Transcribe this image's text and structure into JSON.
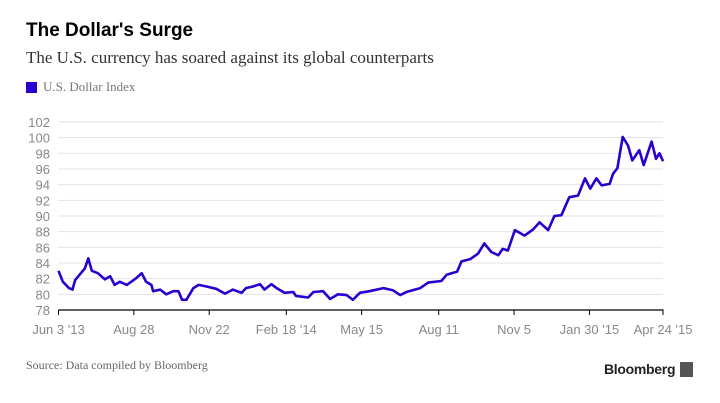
{
  "title": "The Dollar's Surge",
  "subtitle": "The U.S. currency has soared against its global counterparts",
  "source": "Source: Data compiled by Bloomberg",
  "logo": "Bloomberg",
  "colors": {
    "series": "#2a00d0",
    "grid": "#e3e3ea",
    "axis": "#000000",
    "tick_text": "#888888"
  },
  "chart_data": {
    "type": "line",
    "title": "The Dollar's Surge",
    "xlabel": "",
    "ylabel": "",
    "ylim": [
      78,
      102
    ],
    "xlim_days_since_jun_3_2013": [
      0,
      690
    ],
    "grid": true,
    "legend_placement": "top-left",
    "yticks": [
      "78",
      "80",
      "82",
      "84",
      "86",
      "88",
      "90",
      "92",
      "94",
      "96",
      "98",
      "100",
      "102"
    ],
    "xticks": [
      {
        "label": "Jun 3 '13",
        "day": 0
      },
      {
        "label": "Aug 28",
        "day": 86
      },
      {
        "label": "Nov 22",
        "day": 172
      },
      {
        "label": "Feb 18 '14",
        "day": 260
      },
      {
        "label": "May 15",
        "day": 346
      },
      {
        "label": "Aug 11",
        "day": 434
      },
      {
        "label": "Nov 5",
        "day": 520
      },
      {
        "label": "Jan 30 '15",
        "day": 606
      },
      {
        "label": "Apr 24 '15",
        "day": 690
      }
    ],
    "series": [
      {
        "name": "U.S. Dollar Index",
        "x_days": [
          0,
          5,
          12,
          16,
          19,
          27,
          30,
          34,
          38,
          45,
          53,
          59,
          64,
          70,
          78,
          83,
          89,
          95,
          100,
          106,
          108,
          116,
          123,
          131,
          137,
          141,
          146,
          154,
          160,
          169,
          180,
          190,
          199,
          209,
          214,
          222,
          230,
          235,
          243,
          249,
          258,
          268,
          271,
          285,
          291,
          302,
          310,
          319,
          329,
          336,
          344,
          355,
          371,
          382,
          390,
          397,
          413,
          422,
          437,
          443,
          455,
          460,
          470,
          479,
          486,
          494,
          502,
          507,
          513,
          521,
          532,
          542,
          549,
          559,
          566,
          574,
          583,
          593,
          601,
          607,
          614,
          620,
          629,
          633,
          638,
          644,
          650,
          655,
          663,
          668,
          677,
          682,
          686,
          690
        ],
        "values": [
          83,
          81.6,
          80.8,
          80.6,
          81.8,
          82.9,
          83.3,
          84.6,
          83,
          82.7,
          81.9,
          82.3,
          81.2,
          81.6,
          81.2,
          81.6,
          82.1,
          82.7,
          81.6,
          81.2,
          80.4,
          80.6,
          80,
          80.4,
          80.4,
          79.3,
          79.3,
          80.8,
          81.2,
          81,
          80.7,
          80.1,
          80.6,
          80.2,
          80.8,
          81,
          81.3,
          80.6,
          81.3,
          80.8,
          80.2,
          80.3,
          79.8,
          79.6,
          80.3,
          80.4,
          79.4,
          80,
          79.9,
          79.3,
          80.2,
          80.4,
          80.8,
          80.5,
          79.9,
          80.3,
          80.8,
          81.5,
          81.7,
          82.5,
          82.9,
          84.2,
          84.5,
          85.2,
          86.5,
          85.4,
          85,
          85.8,
          85.6,
          88.2,
          87.5,
          88.3,
          89.2,
          88.2,
          90,
          90.1,
          92.4,
          92.6,
          94.8,
          93.5,
          94.8,
          93.9,
          94.1,
          95.4,
          96.1,
          100.1,
          99,
          97.1,
          98.4,
          96.5,
          99.5,
          97.3,
          98,
          97
        ]
      }
    ]
  }
}
